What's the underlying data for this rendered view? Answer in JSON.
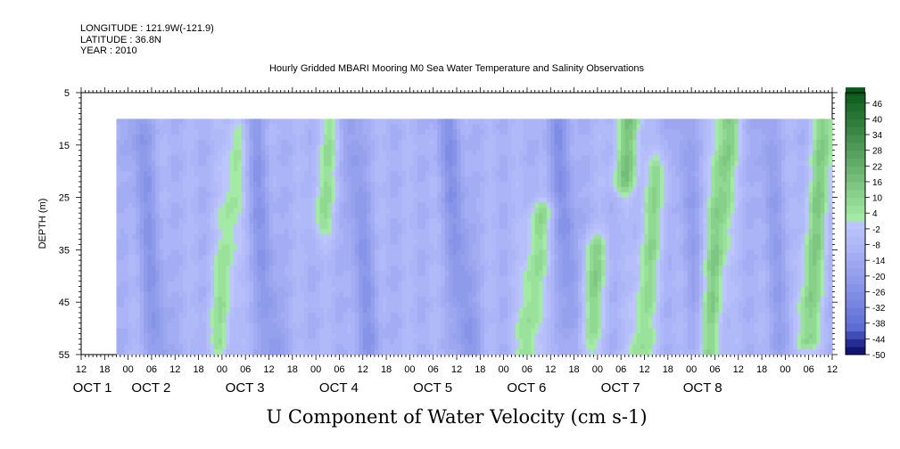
{
  "meta": {
    "longitude": "LONGITUDE : 121.9W(-121.9)",
    "latitude": "LATITUDE : 36.8N",
    "year": "YEAR : 2010"
  },
  "chart_data": {
    "type": "heatmap",
    "title": "Hourly Gridded MBARI Mooring M0 Sea Water Temperature and Salinity Observations",
    "xlabel": "U Component of Water Velocity (cm s-1)",
    "ylabel": "DEPTH (m)",
    "x_range_hours_from_oct1_00": [
      -12,
      180
    ],
    "y_range_m": [
      55,
      5
    ],
    "data_depth_range_m": [
      10,
      55
    ],
    "data_start_hour": -3,
    "y_ticks": [
      5,
      15,
      25,
      35,
      45,
      55
    ],
    "x_tick_hours": [
      "12",
      "18",
      "00",
      "06",
      "12",
      "18",
      "00",
      "06",
      "12",
      "18",
      "00",
      "06",
      "12",
      "18",
      "00",
      "06",
      "12",
      "18",
      "00",
      "06",
      "12",
      "18",
      "00",
      "06",
      "12",
      "18",
      "00",
      "06",
      "12",
      "18",
      "00",
      "06",
      "12"
    ],
    "x_tick_hour_values": [
      -12,
      -6,
      0,
      6,
      12,
      18,
      24,
      30,
      36,
      42,
      48,
      54,
      60,
      66,
      72,
      78,
      84,
      90,
      96,
      102,
      108,
      114,
      120,
      126,
      132,
      138,
      144,
      150,
      156,
      162,
      168,
      174,
      180
    ],
    "date_labels": [
      {
        "text": "OCT  1",
        "hour": 0
      },
      {
        "text": "OCT  2",
        "hour": 15
      },
      {
        "text": "OCT  3",
        "hour": 39
      },
      {
        "text": "OCT  4",
        "hour": 63
      },
      {
        "text": "OCT  5",
        "hour": 87
      },
      {
        "text": "OCT  6",
        "hour": 111
      },
      {
        "text": "OCT  7",
        "hour": 135
      },
      {
        "text": "OCT  8",
        "hour": 156
      }
    ],
    "colorbar": {
      "levels": [
        "46",
        "40",
        "34",
        "28",
        "22",
        "16",
        "10",
        "4",
        "-2",
        "-8",
        "-14",
        "-20",
        "-26",
        "-32",
        "-38",
        "-44",
        "-50"
      ],
      "min": -50,
      "max": 50,
      "step": 3,
      "negative_colors": [
        "#2a3fc0",
        "#c0c8ff"
      ],
      "positive_colors": [
        "#a8f0a8",
        "#0c5a1c"
      ]
    },
    "u_velocity_anomaly_features": [
      {
        "name": "blue streak",
        "hour": 5,
        "depth_top": 10,
        "depth_bottom": 55,
        "value": -22
      },
      {
        "name": "green streak",
        "hour": 26,
        "depth_top": 12,
        "depth_bottom": 52,
        "value": 6
      },
      {
        "name": "blue streak",
        "hour": 34,
        "depth_top": 10,
        "depth_bottom": 55,
        "value": -22
      },
      {
        "name": "green streak",
        "hour": 50,
        "depth_top": 10,
        "depth_bottom": 30,
        "value": 6
      },
      {
        "name": "blue streak",
        "hour": 59,
        "depth_top": 10,
        "depth_bottom": 55,
        "value": -22
      },
      {
        "name": "blue streak",
        "hour": 84,
        "depth_top": 10,
        "depth_bottom": 55,
        "value": -24
      },
      {
        "name": "green streak",
        "hour": 105,
        "depth_top": 28,
        "depth_bottom": 55,
        "value": 8
      },
      {
        "name": "blue streak",
        "hour": 112,
        "depth_top": 10,
        "depth_bottom": 55,
        "value": -24
      },
      {
        "name": "green streak",
        "hour": 120,
        "depth_top": 35,
        "depth_bottom": 55,
        "value": 12
      },
      {
        "name": "green streak",
        "hour": 126,
        "depth_top": 10,
        "depth_bottom": 22,
        "value": 14
      },
      {
        "name": "green streak",
        "hour": 134,
        "depth_top": 20,
        "depth_bottom": 55,
        "value": 8
      },
      {
        "name": "blue streak",
        "hour": 144,
        "depth_top": 10,
        "depth_bottom": 55,
        "value": -18
      },
      {
        "name": "green streak",
        "hour": 151,
        "depth_top": 10,
        "depth_bottom": 55,
        "value": 14
      },
      {
        "name": "blue streak",
        "hour": 165,
        "depth_top": 10,
        "depth_bottom": 55,
        "value": -18
      },
      {
        "name": "green streak",
        "hour": 176,
        "depth_top": 10,
        "depth_bottom": 52,
        "value": 12
      }
    ]
  }
}
